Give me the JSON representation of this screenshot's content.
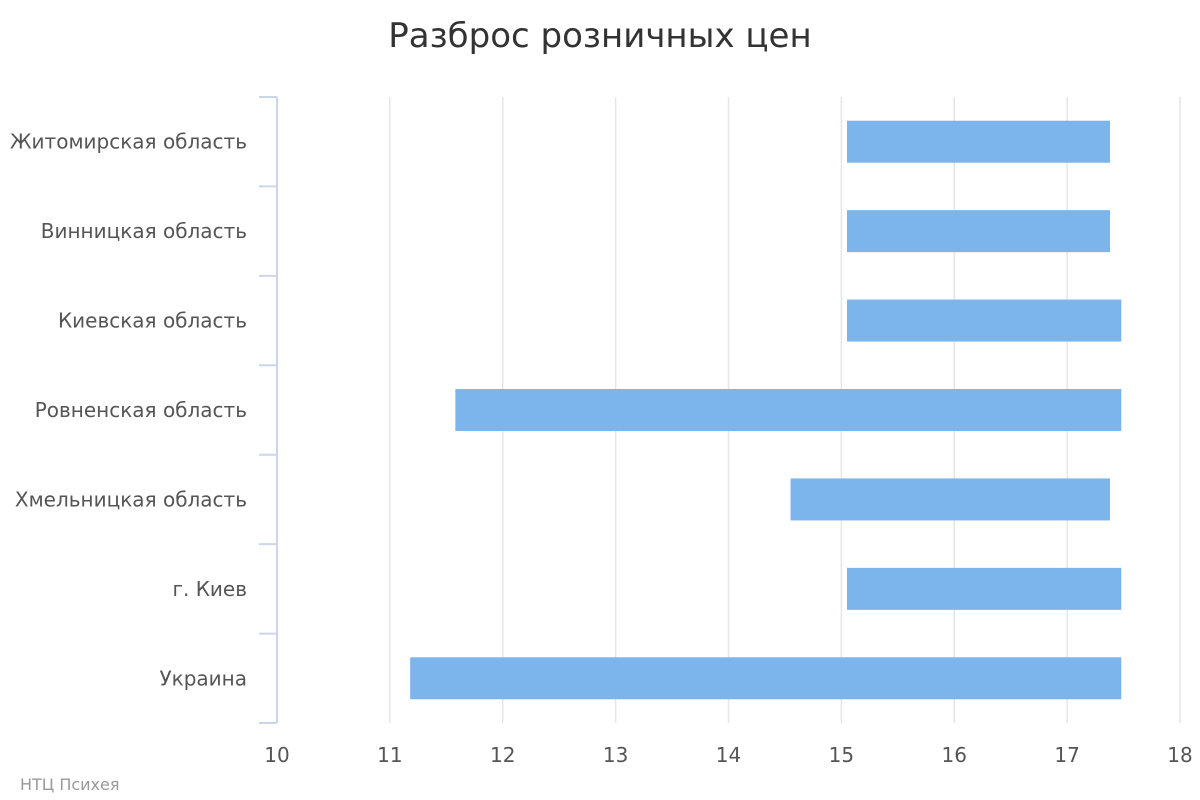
{
  "chart_data": {
    "type": "columnrange",
    "orientation": "horizontal",
    "title": "Разброс розничных цен",
    "credit": "НТЦ Психея",
    "categories": [
      "Житомирская область",
      "Винницкая область",
      "Киевская область",
      "Ровненская область",
      "Хмельницкая область",
      "г. Киев",
      "Украина"
    ],
    "ranges": [
      [
        15.05,
        17.38
      ],
      [
        15.05,
        17.38
      ],
      [
        15.05,
        17.48
      ],
      [
        11.58,
        17.48
      ],
      [
        14.55,
        17.38
      ],
      [
        15.05,
        17.48
      ],
      [
        11.18,
        17.48
      ]
    ],
    "xlim": [
      10,
      18
    ],
    "xticks": [
      10,
      11,
      12,
      13,
      14,
      15,
      16,
      17,
      18
    ],
    "grid": true,
    "legend": "none",
    "colors": {
      "bar": "#7cb5ec",
      "grid": "#e6e6e6",
      "axis": "#ccd6eb",
      "text": "#555555",
      "title": "#333333",
      "credit": "#999999"
    }
  }
}
